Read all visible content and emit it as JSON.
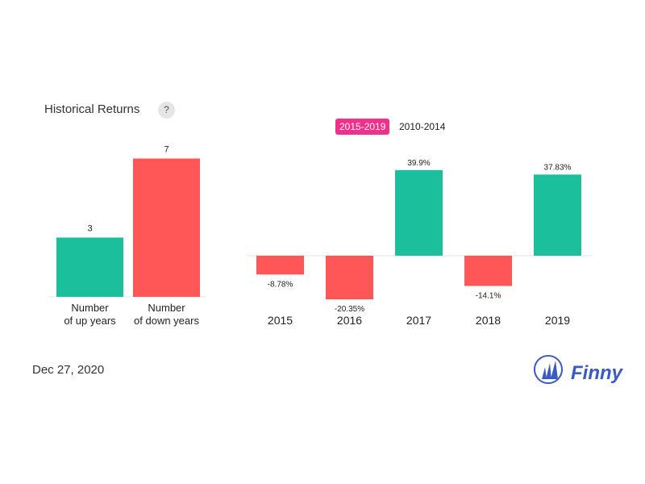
{
  "header": {
    "title": "Historical Returns",
    "help_label": "?"
  },
  "tabs": [
    {
      "label": "2015-2019",
      "active": true
    },
    {
      "label": "2010-2014",
      "active": false
    }
  ],
  "footer": {
    "date": "Dec 27, 2020",
    "brand": "Finny"
  },
  "colors": {
    "positive": "#1bbf9c",
    "negative": "#ff5757",
    "tab_active": "#f0308a",
    "brand": "#3b5bc4"
  },
  "chart_data": [
    {
      "type": "bar",
      "categories": [
        [
          "Number",
          "of up years"
        ],
        [
          "Number",
          "of down years"
        ]
      ],
      "values": [
        3,
        7
      ],
      "data_labels": [
        "3",
        "7"
      ],
      "colors": [
        "#1bbf9c",
        "#ff5757"
      ]
    },
    {
      "type": "bar",
      "categories": [
        "2015",
        "2016",
        "2017",
        "2018",
        "2019"
      ],
      "values": [
        -8.78,
        -20.35,
        39.9,
        -14.1,
        37.83
      ],
      "data_labels": [
        "-8.78%",
        "-20.35%",
        "39.9%",
        "-14.1%",
        "37.83%"
      ],
      "unit": "%"
    }
  ]
}
